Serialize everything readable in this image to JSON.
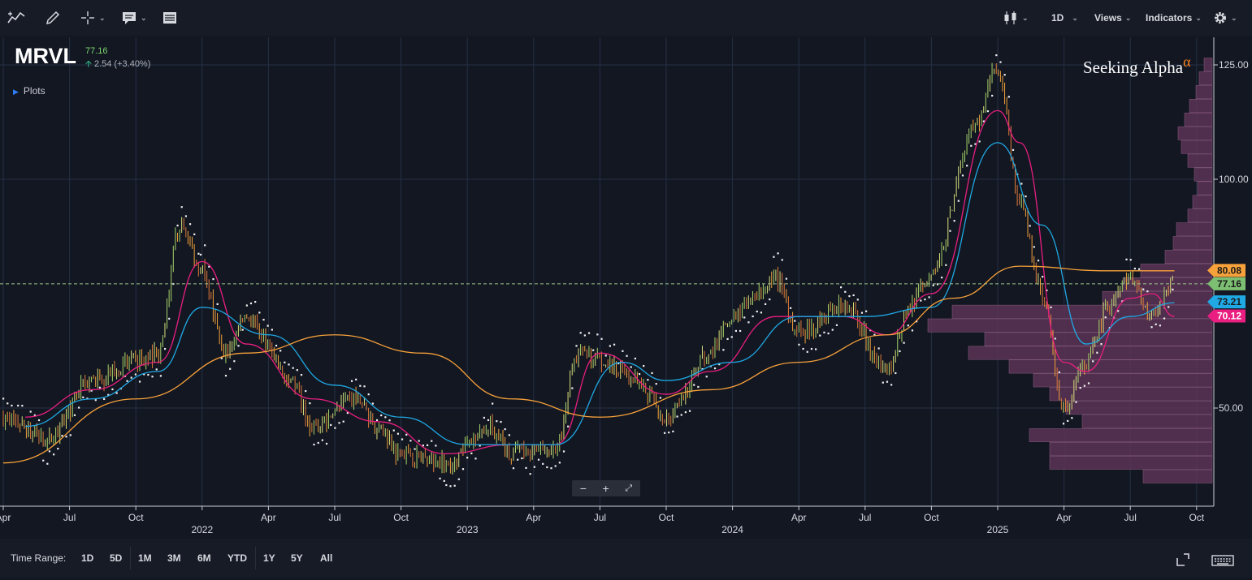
{
  "toolbar": {
    "items": [
      {
        "name": "draw-trend-icon"
      },
      {
        "name": "pencil-icon"
      },
      {
        "name": "crosshair-icon"
      },
      {
        "name": "comment-icon"
      },
      {
        "name": "table-icon"
      }
    ],
    "right": {
      "chart_type_icon": "candlestick-icon",
      "interval_label": "1D",
      "views_label": "Views",
      "indicators_label": "Indicators",
      "settings_icon": "gear-icon"
    }
  },
  "header": {
    "symbol": "MRVL",
    "last": "77.16",
    "change": "2.54 (+3.40%)",
    "plots_label": "Plots",
    "brand": "Seeking Alpha",
    "brand_mark": "α"
  },
  "zoom": {
    "minus": "−",
    "plus": "+"
  },
  "bottombar": {
    "time_range_label": "Time Range:",
    "ranges": [
      "1D",
      "5D",
      "1M",
      "3M",
      "6M",
      "YTD",
      "1Y",
      "5Y",
      "All"
    ]
  },
  "chart_data": {
    "type": "candlestick",
    "symbol": "MRVL",
    "y_range": [
      32,
      128
    ],
    "y_ticks": [
      50,
      100,
      125
    ],
    "y_tick_labels": [
      "50.00",
      "100.00",
      "125.00"
    ],
    "x_tick_labels": [
      "Apr",
      "Jul",
      "Oct",
      "2022",
      "Apr",
      "Jul",
      "Oct",
      "2023",
      "Apr",
      "Jul",
      "Oct",
      "2024",
      "Apr",
      "Jul",
      "Oct",
      "2025",
      "Apr",
      "Jul",
      "Oct"
    ],
    "year_labels": [
      "2022",
      "2023",
      "2024",
      "2025"
    ],
    "grid": true,
    "last_price_line": 77.16,
    "price_tags": [
      {
        "label": "80.08",
        "color": "#f7a13a"
      },
      {
        "label": "77.16",
        "color": "#7dbf72"
      },
      {
        "label": "73.21",
        "color": "#1fa8e3"
      },
      {
        "label": "70.12",
        "color": "#e91e80"
      }
    ],
    "price_tag_values": [
      80.08,
      77.16,
      73.21,
      70.12
    ],
    "price_path_anchors": [
      [
        "2021-04",
        48
      ],
      [
        "2021-06",
        43
      ],
      [
        "2021-08",
        56
      ],
      [
        "2021-10",
        60
      ],
      [
        "2021-11",
        62
      ],
      [
        "2021-12",
        90
      ],
      [
        "2022-01",
        80
      ],
      [
        "2022-02",
        62
      ],
      [
        "2022-03",
        70
      ],
      [
        "2022-05",
        56
      ],
      [
        "2022-06",
        46
      ],
      [
        "2022-08",
        52
      ],
      [
        "2022-09",
        45
      ],
      [
        "2022-10",
        40
      ],
      [
        "2022-12",
        38
      ],
      [
        "2023-02",
        46
      ],
      [
        "2023-03",
        40
      ],
      [
        "2023-05",
        41
      ],
      [
        "2023-06",
        62
      ],
      [
        "2023-08",
        58
      ],
      [
        "2023-09",
        54
      ],
      [
        "2023-10",
        48
      ],
      [
        "2023-12",
        62
      ],
      [
        "2024-01",
        70
      ],
      [
        "2024-03",
        78
      ],
      [
        "2024-04",
        66
      ],
      [
        "2024-06",
        73
      ],
      [
        "2024-08",
        58
      ],
      [
        "2024-09",
        72
      ],
      [
        "2024-10",
        80
      ],
      [
        "2024-12",
        112
      ],
      [
        "2025-01",
        125
      ],
      [
        "2025-02",
        95
      ],
      [
        "2025-03",
        75
      ],
      [
        "2025-04",
        50
      ],
      [
        "2025-05",
        60
      ],
      [
        "2025-06",
        72
      ],
      [
        "2025-07",
        78
      ],
      [
        "2025-08",
        70
      ],
      [
        "2025-09",
        77
      ]
    ],
    "series": [
      {
        "color": "#e91e80",
        "points": [
          [
            "2021-05",
            48
          ],
          [
            "2021-08",
            54
          ],
          [
            "2021-11",
            60
          ],
          [
            "2022-01",
            82
          ],
          [
            "2022-03",
            64
          ],
          [
            "2022-06",
            52
          ],
          [
            "2022-09",
            47
          ],
          [
            "2022-12",
            40
          ],
          [
            "2023-03",
            42
          ],
          [
            "2023-05",
            42
          ],
          [
            "2023-07",
            62
          ],
          [
            "2023-10",
            53
          ],
          [
            "2023-12",
            58
          ],
          [
            "2024-03",
            70
          ],
          [
            "2024-06",
            70
          ],
          [
            "2024-08",
            66
          ],
          [
            "2024-10",
            75
          ],
          [
            "2025-01",
            115
          ],
          [
            "2025-02",
            108
          ],
          [
            "2025-04",
            60
          ],
          [
            "2025-05",
            58
          ],
          [
            "2025-07",
            74
          ],
          [
            "2025-08",
            75
          ],
          [
            "2025-09",
            70
          ]
        ]
      },
      {
        "color": "#1fa8e3",
        "points": [
          [
            "2021-05",
            46
          ],
          [
            "2021-08",
            52
          ],
          [
            "2021-11",
            58
          ],
          [
            "2022-01",
            72
          ],
          [
            "2022-04",
            66
          ],
          [
            "2022-07",
            55
          ],
          [
            "2022-10",
            48
          ],
          [
            "2023-01",
            42
          ],
          [
            "2023-05",
            42
          ],
          [
            "2023-08",
            60
          ],
          [
            "2023-10",
            56
          ],
          [
            "2024-01",
            60
          ],
          [
            "2024-04",
            70
          ],
          [
            "2024-07",
            70
          ],
          [
            "2024-10",
            72
          ],
          [
            "2025-01",
            108
          ],
          [
            "2025-03",
            90
          ],
          [
            "2025-05",
            64
          ],
          [
            "2025-07",
            70
          ],
          [
            "2025-09",
            73
          ]
        ]
      },
      {
        "color": "#f7a13a",
        "points": [
          [
            "2021-04",
            38
          ],
          [
            "2021-10",
            52
          ],
          [
            "2022-03",
            62
          ],
          [
            "2022-07",
            66
          ],
          [
            "2022-11",
            62
          ],
          [
            "2023-03",
            52
          ],
          [
            "2023-07",
            48
          ],
          [
            "2023-12",
            54
          ],
          [
            "2024-04",
            60
          ],
          [
            "2024-08",
            66
          ],
          [
            "2024-11",
            74
          ],
          [
            "2025-02",
            81
          ],
          [
            "2025-06",
            80
          ],
          [
            "2025-09",
            80
          ]
        ]
      }
    ],
    "volume_profile_bins": [
      {
        "price": 125,
        "width": 10
      },
      {
        "price": 122,
        "width": 16
      },
      {
        "price": 119,
        "width": 20
      },
      {
        "price": 116,
        "width": 28
      },
      {
        "price": 113,
        "width": 34
      },
      {
        "price": 110,
        "width": 42
      },
      {
        "price": 107,
        "width": 38
      },
      {
        "price": 104,
        "width": 30
      },
      {
        "price": 101,
        "width": 22
      },
      {
        "price": 98,
        "width": 18
      },
      {
        "price": 95,
        "width": 24
      },
      {
        "price": 92,
        "width": 30
      },
      {
        "price": 89,
        "width": 44
      },
      {
        "price": 86,
        "width": 48
      },
      {
        "price": 83,
        "width": 58
      },
      {
        "price": 80,
        "width": 88
      },
      {
        "price": 77,
        "width": 110
      },
      {
        "price": 74,
        "width": 135
      },
      {
        "price": 71,
        "width": 320
      },
      {
        "price": 68,
        "width": 350
      },
      {
        "price": 65,
        "width": 280
      },
      {
        "price": 62,
        "width": 300
      },
      {
        "price": 59,
        "width": 250
      },
      {
        "price": 56,
        "width": 220
      },
      {
        "price": 53,
        "width": 200
      },
      {
        "price": 50,
        "width": 180
      },
      {
        "price": 47,
        "width": 160
      },
      {
        "price": 44,
        "width": 225
      },
      {
        "price": 41,
        "width": 200
      },
      {
        "price": 38,
        "width": 200
      },
      {
        "price": 35,
        "width": 85
      }
    ]
  }
}
